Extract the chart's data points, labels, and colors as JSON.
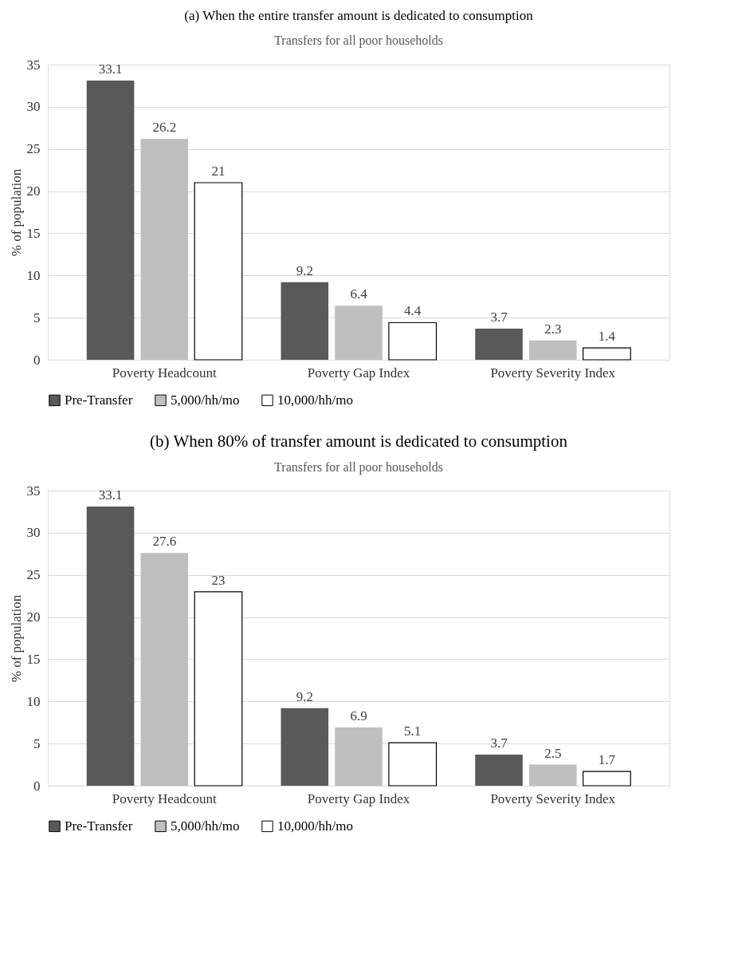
{
  "chart_data": [
    {
      "type": "bar",
      "title": "(a)   When the entire transfer amount is dedicated to consumption",
      "subtitle": "Transfers for all poor households",
      "ylabel": "% of population",
      "categories": [
        "Poverty Headcount",
        "Poverty Gap Index",
        "Poverty Severity Index"
      ],
      "series": [
        {
          "name": "Pre-Transfer",
          "color": "#595959",
          "values": [
            33.1,
            9.2,
            3.7
          ]
        },
        {
          "name": "5,000/hh/mo",
          "color": "#bfbfbf",
          "values": [
            26.2,
            6.4,
            2.3
          ]
        },
        {
          "name": "10,000/hh/mo",
          "color": "#ffffff",
          "values": [
            21,
            4.4,
            1.4
          ]
        }
      ],
      "ylim": [
        0,
        35
      ],
      "yticks": [
        0,
        5,
        10,
        15,
        20,
        25,
        30,
        35
      ],
      "grid": "y",
      "legend": "bottom",
      "data_labels": true
    },
    {
      "type": "bar",
      "title": "(b) When 80% of transfer amount is dedicated to consumption",
      "subtitle": "Transfers for all poor households",
      "ylabel": "% of population",
      "categories": [
        "Poverty Headcount",
        "Poverty Gap Index",
        "Poverty Severity Index"
      ],
      "series": [
        {
          "name": "Pre-Transfer",
          "color": "#595959",
          "values": [
            33.1,
            9.2,
            3.7
          ]
        },
        {
          "name": "5,000/hh/mo",
          "color": "#bfbfbf",
          "values": [
            27.6,
            6.9,
            2.5
          ]
        },
        {
          "name": "10,000/hh/mo",
          "color": "#ffffff",
          "values": [
            23,
            5.1,
            1.7
          ]
        }
      ],
      "ylim": [
        0,
        35
      ],
      "yticks": [
        0,
        5,
        10,
        15,
        20,
        25,
        30,
        35
      ],
      "grid": "y",
      "legend": "bottom",
      "data_labels": true
    }
  ]
}
